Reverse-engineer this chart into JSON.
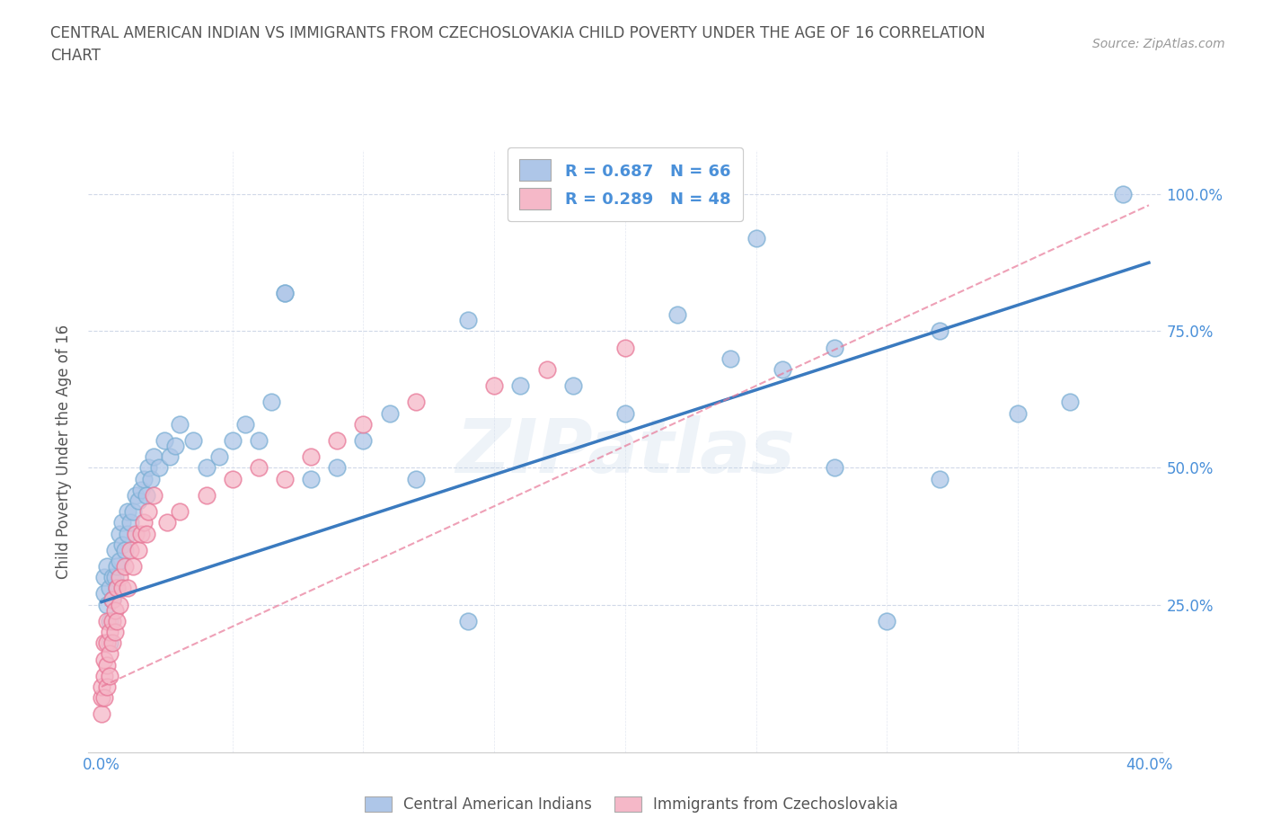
{
  "title": "CENTRAL AMERICAN INDIAN VS IMMIGRANTS FROM CZECHOSLOVAKIA CHILD POVERTY UNDER THE AGE OF 16 CORRELATION\nCHART",
  "source_text": "Source: ZipAtlas.com",
  "ylabel": "Child Poverty Under the Age of 16",
  "xlim": [
    -0.005,
    0.405
  ],
  "ylim": [
    -0.02,
    1.08
  ],
  "blue_color": "#aec6e8",
  "blue_edge": "#7bafd4",
  "pink_color": "#f5b8c8",
  "pink_edge": "#e87898",
  "line_blue": "#3a7abf",
  "line_pink": "#e87898",
  "watermark": "ZIPatlas",
  "legend1_r": "R = 0.687",
  "legend1_n": "N = 66",
  "legend2_r": "R = 0.289",
  "legend2_n": "N = 48",
  "legend_label1": "Central American Indians",
  "legend_label2": "Immigrants from Czechoslovakia",
  "blue_scatter_x": [
    0.001,
    0.001,
    0.002,
    0.002,
    0.003,
    0.003,
    0.003,
    0.004,
    0.004,
    0.005,
    0.005,
    0.006,
    0.006,
    0.007,
    0.007,
    0.008,
    0.008,
    0.009,
    0.01,
    0.01,
    0.011,
    0.012,
    0.013,
    0.014,
    0.015,
    0.016,
    0.017,
    0.018,
    0.019,
    0.02,
    0.022,
    0.024,
    0.026,
    0.028,
    0.03,
    0.035,
    0.04,
    0.045,
    0.05,
    0.055,
    0.06,
    0.065,
    0.07,
    0.08,
    0.09,
    0.1,
    0.11,
    0.12,
    0.14,
    0.16,
    0.18,
    0.2,
    0.22,
    0.24,
    0.26,
    0.28,
    0.3,
    0.32,
    0.35,
    0.37,
    0.39,
    0.25,
    0.07,
    0.14,
    0.28,
    0.32
  ],
  "blue_scatter_y": [
    0.27,
    0.3,
    0.25,
    0.32,
    0.28,
    0.22,
    0.18,
    0.3,
    0.26,
    0.3,
    0.35,
    0.32,
    0.28,
    0.38,
    0.33,
    0.36,
    0.4,
    0.35,
    0.38,
    0.42,
    0.4,
    0.42,
    0.45,
    0.44,
    0.46,
    0.48,
    0.45,
    0.5,
    0.48,
    0.52,
    0.5,
    0.55,
    0.52,
    0.54,
    0.58,
    0.55,
    0.5,
    0.52,
    0.55,
    0.58,
    0.55,
    0.62,
    0.82,
    0.48,
    0.5,
    0.55,
    0.6,
    0.48,
    0.22,
    0.65,
    0.65,
    0.6,
    0.78,
    0.7,
    0.68,
    0.5,
    0.22,
    0.75,
    0.6,
    0.62,
    1.0,
    0.92,
    0.82,
    0.77,
    0.72,
    0.48
  ],
  "pink_scatter_x": [
    0.0,
    0.0,
    0.0,
    0.001,
    0.001,
    0.001,
    0.001,
    0.002,
    0.002,
    0.002,
    0.002,
    0.003,
    0.003,
    0.003,
    0.004,
    0.004,
    0.004,
    0.005,
    0.005,
    0.006,
    0.006,
    0.007,
    0.007,
    0.008,
    0.009,
    0.01,
    0.011,
    0.012,
    0.013,
    0.014,
    0.015,
    0.016,
    0.017,
    0.018,
    0.02,
    0.025,
    0.03,
    0.04,
    0.05,
    0.06,
    0.07,
    0.08,
    0.09,
    0.1,
    0.12,
    0.15,
    0.17,
    0.2
  ],
  "pink_scatter_y": [
    0.05,
    0.08,
    0.1,
    0.12,
    0.08,
    0.15,
    0.18,
    0.1,
    0.14,
    0.18,
    0.22,
    0.12,
    0.16,
    0.2,
    0.18,
    0.22,
    0.26,
    0.2,
    0.24,
    0.22,
    0.28,
    0.25,
    0.3,
    0.28,
    0.32,
    0.28,
    0.35,
    0.32,
    0.38,
    0.35,
    0.38,
    0.4,
    0.38,
    0.42,
    0.45,
    0.4,
    0.42,
    0.45,
    0.48,
    0.5,
    0.48,
    0.52,
    0.55,
    0.58,
    0.62,
    0.65,
    0.68,
    0.72
  ],
  "blue_line_x": [
    0.0,
    0.4
  ],
  "blue_line_y": [
    0.255,
    0.875
  ],
  "pink_line_x": [
    0.0,
    0.4
  ],
  "pink_line_y": [
    0.1,
    0.98
  ],
  "grid_color": "#d0d8e8",
  "background_color": "#ffffff",
  "title_color": "#555555",
  "axis_color": "#4a90d9",
  "ytick_positions": [
    0.0,
    0.25,
    0.5,
    0.75,
    1.0
  ],
  "ytick_labels": [
    "",
    "25.0%",
    "50.0%",
    "75.0%",
    "100.0%"
  ],
  "xtick_positions": [
    0.0,
    0.05,
    0.1,
    0.15,
    0.2,
    0.25,
    0.3,
    0.35,
    0.4
  ],
  "xtick_labels": [
    "0.0%",
    "",
    "",
    "",
    "",
    "",
    "",
    "",
    "40.0%"
  ]
}
